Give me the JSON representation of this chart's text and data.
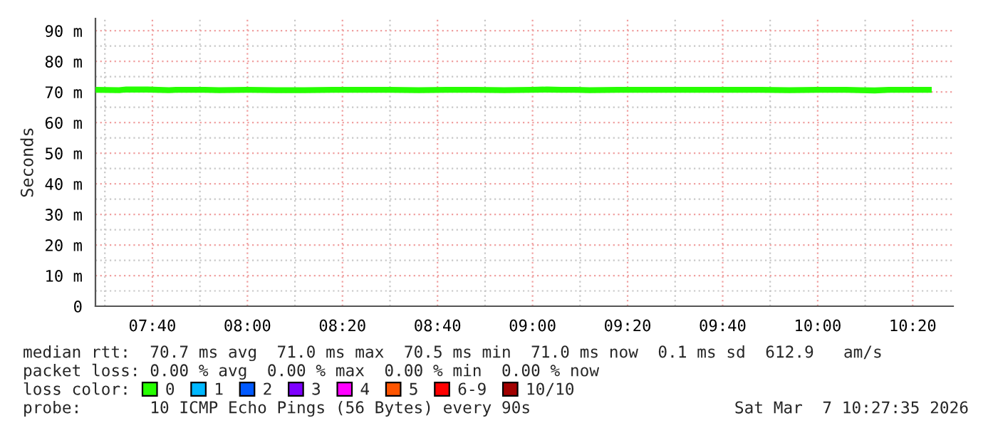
{
  "chart_data": {
    "type": "line",
    "ylabel": "Seconds",
    "xlim": [
      7.467,
      10.475
    ],
    "xticks": [
      {
        "value": 7.6667,
        "label": "07:40"
      },
      {
        "value": 8.0,
        "label": "08:00"
      },
      {
        "value": 8.3333,
        "label": "08:20"
      },
      {
        "value": 8.6667,
        "label": "08:40"
      },
      {
        "value": 9.0,
        "label": "09:00"
      },
      {
        "value": 9.3333,
        "label": "09:20"
      },
      {
        "value": 9.6667,
        "label": "09:40"
      },
      {
        "value": 10.0,
        "label": "10:00"
      },
      {
        "value": 10.3333,
        "label": "10:20"
      }
    ],
    "ylim": [
      0,
      94
    ],
    "yticks": [
      0,
      {
        "value": 10,
        "label": "10 m"
      },
      {
        "value": 20,
        "label": "20 m"
      },
      {
        "value": 30,
        "label": "30 m"
      },
      {
        "value": 40,
        "label": "40 m"
      },
      {
        "value": 50,
        "label": "50 m"
      },
      {
        "value": 60,
        "label": "60 m"
      },
      {
        "value": 70,
        "label": "70 m"
      },
      {
        "value": 80,
        "label": "80 m"
      },
      {
        "value": 90,
        "label": "90 m"
      }
    ],
    "grid": true,
    "legend": "bottom",
    "legend_title": "loss color:",
    "series": [
      {
        "name": "0",
        "color": "#26ff00",
        "x": [
          7.467,
          7.55,
          7.575,
          7.65,
          7.725,
          7.75,
          7.85,
          7.9,
          8.0,
          8.1,
          8.2,
          8.3,
          8.4,
          8.5,
          8.6,
          8.7,
          8.8,
          8.9,
          9.0,
          9.05,
          9.1,
          9.15,
          9.2,
          9.3,
          9.4,
          9.5,
          9.6,
          9.7,
          9.8,
          9.9,
          10.0,
          10.1,
          10.15,
          10.2,
          10.25,
          10.3,
          10.4
        ],
        "values": [
          70.7,
          70.6,
          70.8,
          70.8,
          70.6,
          70.7,
          70.7,
          70.6,
          70.7,
          70.6,
          70.6,
          70.7,
          70.7,
          70.7,
          70.6,
          70.7,
          70.7,
          70.6,
          70.7,
          70.8,
          70.7,
          70.7,
          70.6,
          70.7,
          70.7,
          70.7,
          70.7,
          70.7,
          70.7,
          70.6,
          70.7,
          70.7,
          70.6,
          70.5,
          70.7,
          70.7,
          70.7
        ]
      },
      {
        "name": "1",
        "color": "#00b8ff"
      },
      {
        "name": "2",
        "color": "#0059ff"
      },
      {
        "name": "3",
        "color": "#7e00ff"
      },
      {
        "name": "4",
        "color": "#ff00ff"
      },
      {
        "name": "5",
        "color": "#ff5500"
      },
      {
        "name": "6-9",
        "color": "#ff0000"
      },
      {
        "name": "10/10",
        "color": "#a10000"
      }
    ],
    "annotations": [
      "median rtt:  70.7 ms avg  71.0 ms max  70.5 ms min  71.0 ms now  0.1 ms sd  612.9   am/s",
      "packet loss: 0.00 % avg  0.00 % max  0.00 % min  0.00 % now",
      "probe:       10 ICMP Echo Pings (56 Bytes) every 90s",
      "Sat Mar  7 10:27:35 2026"
    ]
  }
}
